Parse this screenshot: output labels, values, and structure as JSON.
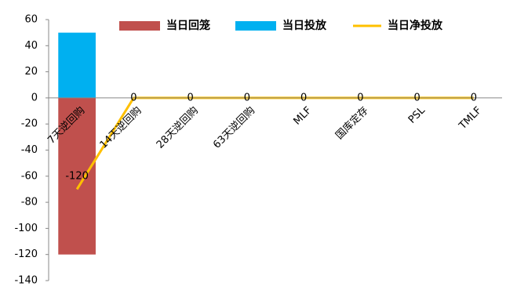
{
  "chart_data": {
    "type": "bar",
    "categories": [
      "7天逆回购",
      "14天逆回购",
      "28天逆回购",
      "63天逆回购",
      "MLF",
      "国库定存",
      "PSL",
      "TMLF"
    ],
    "series": [
      {
        "name": "当日回笼",
        "type": "bar",
        "color": "#c0504d",
        "values": [
          -120,
          0,
          0,
          0,
          0,
          0,
          0,
          0
        ],
        "value_labels": [
          "-120",
          null,
          null,
          null,
          null,
          null,
          null,
          null
        ]
      },
      {
        "name": "当日投放",
        "type": "bar",
        "color": "#00b0f0",
        "values": [
          50,
          0,
          0,
          0,
          0,
          0,
          0,
          0
        ]
      },
      {
        "name": "当日净投放",
        "type": "line",
        "color": "#ffc000",
        "values": [
          -70,
          0,
          0,
          0,
          0,
          0,
          0,
          0
        ],
        "value_labels": [
          null,
          "0",
          "0",
          "0",
          "0",
          "0",
          "0",
          "0"
        ]
      }
    ],
    "ylim": [
      -140,
      60
    ],
    "yticks": [
      -140,
      -120,
      -100,
      -80,
      -60,
      -40,
      -20,
      0,
      20,
      40,
      60
    ]
  }
}
